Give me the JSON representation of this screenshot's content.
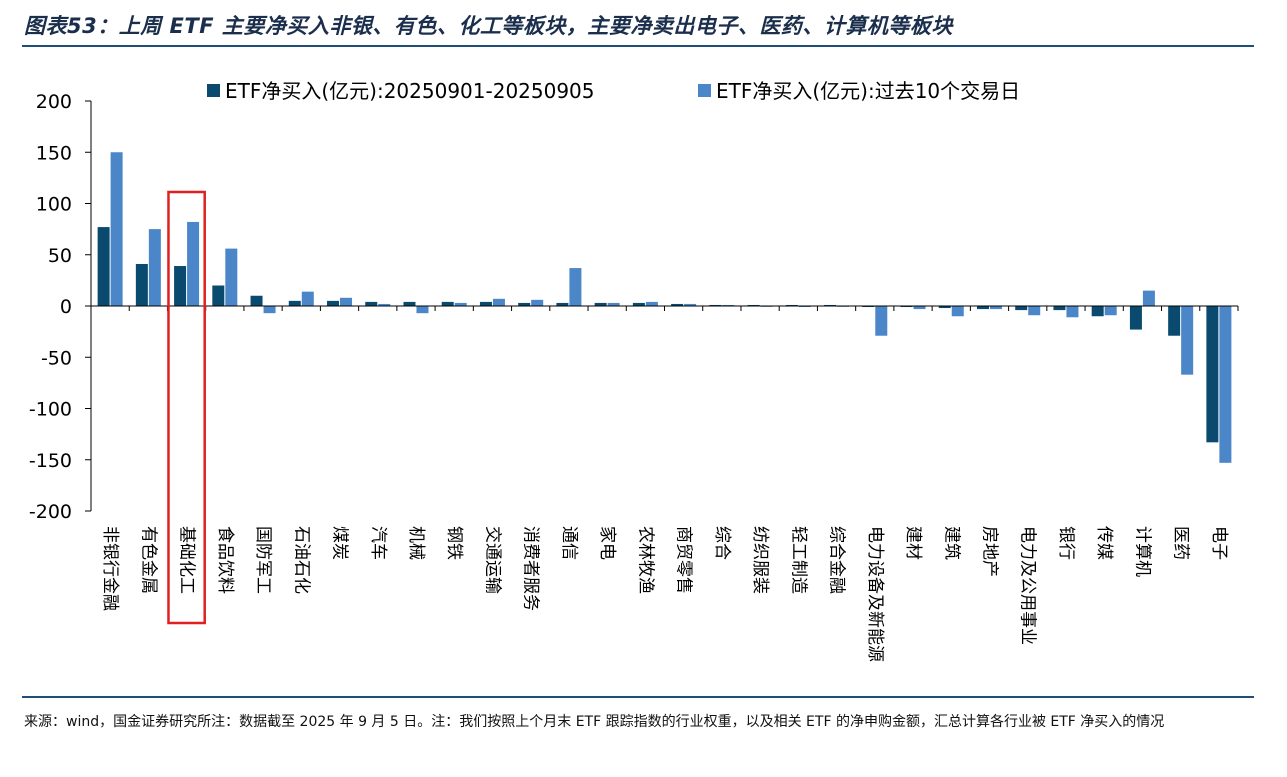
{
  "figure_title": "图表53：上周 ETF 主要净买入非银、有色、化工等板块，主要净卖出电子、医药、计算机等板块",
  "note": "来源：wind，国金证券研究所注：数据截至 2025 年 9 月 5 日。注：我们按照上个月末 ETF 跟踪指数的行业权重，以及相关 ETF 的净申购金额，汇总计算各行业被 ETF 净买入的情况",
  "colors": {
    "series_week": "#0b4a6f",
    "series_10d": "#4a86c8",
    "highlight_box": "#e02020",
    "rule": "#1f4e79"
  },
  "chart_data": {
    "type": "bar",
    "title": "",
    "xlabel": "",
    "ylabel": "",
    "ylim": [
      -200,
      200
    ],
    "yticks": [
      200,
      150,
      100,
      50,
      0,
      -50,
      -100,
      -150,
      -200
    ],
    "legend_position": "top",
    "grid": false,
    "highlight_category": "基础化工",
    "categories": [
      "非银行金融",
      "有色金属",
      "基础化工",
      "食品饮料",
      "国防军工",
      "石油石化",
      "煤炭",
      "汽车",
      "机械",
      "钢铁",
      "交通运输",
      "消费者服务",
      "通信",
      "家电",
      "农林牧渔",
      "商贸零售",
      "综合",
      "纺织服装",
      "轻工制造",
      "综合金融",
      "电力设备及新能源",
      "建材",
      "建筑",
      "房地产",
      "电力及公用事业",
      "银行",
      "传媒",
      "计算机",
      "医药",
      "电子"
    ],
    "series": [
      {
        "name": "ETF净买入(亿元):20250901-20250905",
        "values": [
          77,
          41,
          39,
          20,
          10,
          5,
          5,
          4,
          4,
          4,
          4,
          3,
          3,
          3,
          3,
          2,
          1,
          1,
          1,
          1,
          -1,
          -1,
          -2,
          -3,
          -4,
          -4,
          -10,
          -23,
          -29,
          -133
        ]
      },
      {
        "name": "ETF净买入(亿元):过去10个交易日",
        "values": [
          150,
          75,
          82,
          56,
          -7,
          14,
          8,
          2,
          -7,
          3,
          7,
          6,
          37,
          3,
          4,
          2,
          1,
          0,
          -1,
          0,
          -29,
          -3,
          -10,
          -3,
          -9,
          -11,
          -9,
          15,
          -67,
          -153
        ]
      }
    ]
  }
}
